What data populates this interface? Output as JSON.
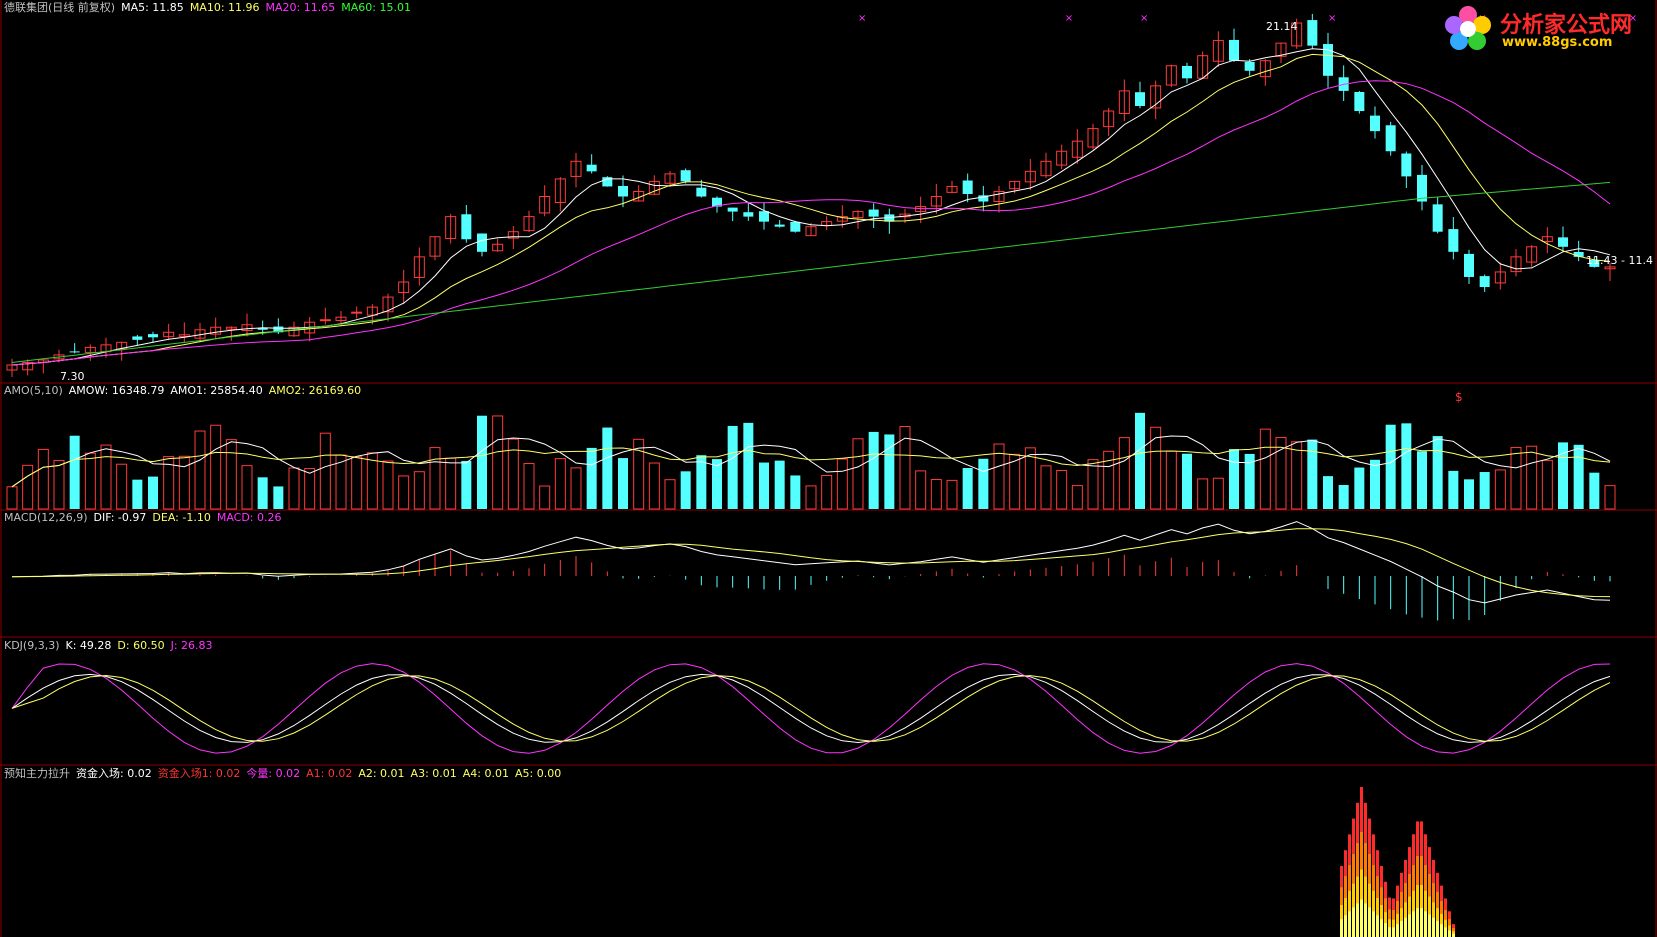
{
  "main": {
    "header": [
      {
        "text": "德联集团(日线 前复权)",
        "color": "#c0c0c0"
      },
      {
        "text": "MA5: 11.85",
        "color": "#ffffff"
      },
      {
        "text": "MA10: 11.96",
        "color": "#ffff66"
      },
      {
        "text": "MA20: 11.65",
        "color": "#ff33ff"
      },
      {
        "text": "MA60: 15.01",
        "color": "#33ff33"
      }
    ],
    "high_label": "21.14",
    "low_label": "7.30",
    "last_label": "11.43 - 11.4",
    "signal_glyph": "$"
  },
  "amo": {
    "header": [
      {
        "text": "AMO(5,10)",
        "color": "#c0c0c0"
      },
      {
        "text": "AMOW: 16348.79",
        "color": "#ffffff"
      },
      {
        "text": "AMO1: 25854.40",
        "color": "#ffffff"
      },
      {
        "text": "AMO2: 26169.60",
        "color": "#ffff66"
      }
    ]
  },
  "macd": {
    "header": [
      {
        "text": "MACD(12,26,9)",
        "color": "#c0c0c0"
      },
      {
        "text": "DIF: -0.97",
        "color": "#ffffff"
      },
      {
        "text": "DEA: -1.10",
        "color": "#ffff66"
      },
      {
        "text": "MACD: 0.26",
        "color": "#ff33ff"
      }
    ]
  },
  "kdj": {
    "header": [
      {
        "text": "KDJ(9,3,3)",
        "color": "#c0c0c0"
      },
      {
        "text": "K: 49.28",
        "color": "#ffffff"
      },
      {
        "text": "D: 60.50",
        "color": "#ffff66"
      },
      {
        "text": "J: 26.83",
        "color": "#ff33ff"
      }
    ]
  },
  "custom": {
    "header": [
      {
        "text": "预知主力拉升",
        "color": "#c0c0c0"
      },
      {
        "text": "资金入场: 0.02",
        "color": "#ffffff"
      },
      {
        "text": "资金入场1: 0.02",
        "color": "#ff3333"
      },
      {
        "text": "今量: 0.02",
        "color": "#ff33ff"
      },
      {
        "text": "A1: 0.02",
        "color": "#ff3333"
      },
      {
        "text": "A2: 0.01",
        "color": "#ffff66"
      },
      {
        "text": "A3: 0.01",
        "color": "#ffff66"
      },
      {
        "text": "A4: 0.01",
        "color": "#ffff66"
      },
      {
        "text": "A5: 0.00",
        "color": "#ffff66"
      }
    ]
  },
  "logo": {
    "title": "分析家公式网",
    "url": "www.88gs.com"
  },
  "chart_data": {
    "type": "candlestick",
    "price_range": [
      7.3,
      21.14
    ],
    "closes": [
      7.5,
      7.6,
      7.7,
      7.9,
      8.0,
      8.2,
      8.3,
      8.4,
      8.5,
      8.6,
      8.8,
      8.7,
      8.9,
      9.0,
      9.0,
      9.1,
      8.9,
      8.8,
      9.0,
      9.2,
      9.3,
      9.4,
      9.6,
      9.8,
      10.2,
      10.8,
      11.8,
      12.6,
      13.4,
      12.5,
      12.0,
      12.3,
      12.8,
      13.4,
      14.2,
      14.9,
      15.6,
      15.2,
      14.6,
      14.2,
      14.4,
      14.8,
      15.1,
      14.8,
      14.2,
      13.8,
      13.6,
      13.4,
      13.2,
      13.0,
      12.8,
      13.0,
      13.2,
      13.4,
      13.6,
      13.4,
      13.2,
      13.5,
      13.8,
      14.2,
      14.6,
      14.3,
      14.0,
      14.4,
      14.8,
      15.2,
      15.6,
      16.0,
      16.4,
      16.9,
      17.6,
      18.4,
      17.8,
      18.6,
      19.4,
      18.9,
      19.8,
      20.4,
      19.6,
      19.2,
      19.6,
      20.3,
      21.1,
      20.2,
      19.0,
      18.4,
      17.6,
      16.8,
      16.0,
      15.0,
      14.0,
      12.8,
      12.0,
      11.0,
      10.6,
      11.2,
      11.8,
      12.2,
      12.6,
      12.2,
      11.8,
      11.4,
      11.4
    ]
  }
}
